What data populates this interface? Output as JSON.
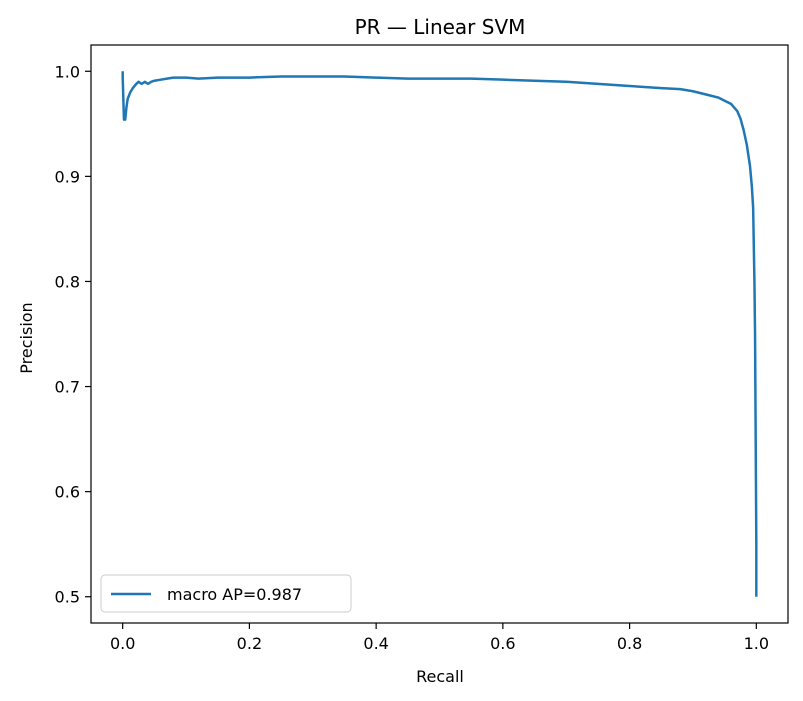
{
  "chart_data": {
    "type": "line",
    "title": "PR — Linear SVM",
    "xlabel": "Recall",
    "ylabel": "Precision",
    "xlim": [
      -0.05,
      1.05
    ],
    "ylim": [
      0.475,
      1.025
    ],
    "xticks": [
      0.0,
      0.2,
      0.4,
      0.6,
      0.8,
      1.0
    ],
    "xtick_labels": [
      "0.0",
      "0.2",
      "0.4",
      "0.6",
      "0.8",
      "1.0"
    ],
    "yticks": [
      0.5,
      0.6,
      0.7,
      0.8,
      0.9,
      1.0
    ],
    "ytick_labels": [
      "0.5",
      "0.6",
      "0.7",
      "0.8",
      "0.9",
      "1.0"
    ],
    "grid": false,
    "legend_position": "lower-left",
    "series": [
      {
        "name": "macro AP=0.987",
        "color": "#1f77b4",
        "x": [
          0.0,
          0.0,
          0.002,
          0.004,
          0.006,
          0.008,
          0.012,
          0.016,
          0.02,
          0.025,
          0.03,
          0.035,
          0.04,
          0.045,
          0.05,
          0.06,
          0.07,
          0.08,
          0.1,
          0.12,
          0.15,
          0.2,
          0.25,
          0.3,
          0.35,
          0.4,
          0.45,
          0.5,
          0.55,
          0.6,
          0.65,
          0.7,
          0.75,
          0.8,
          0.85,
          0.88,
          0.9,
          0.92,
          0.94,
          0.95,
          0.96,
          0.97,
          0.975,
          0.98,
          0.985,
          0.99,
          0.993,
          0.995,
          0.997,
          0.998,
          0.999,
          1.0,
          1.0
        ],
        "y": [
          1.0,
          0.995,
          0.954,
          0.954,
          0.966,
          0.974,
          0.98,
          0.984,
          0.987,
          0.99,
          0.988,
          0.99,
          0.988,
          0.99,
          0.991,
          0.992,
          0.993,
          0.994,
          0.994,
          0.993,
          0.994,
          0.994,
          0.995,
          0.995,
          0.995,
          0.994,
          0.993,
          0.993,
          0.993,
          0.992,
          0.991,
          0.99,
          0.988,
          0.986,
          0.984,
          0.983,
          0.981,
          0.978,
          0.975,
          0.972,
          0.969,
          0.962,
          0.955,
          0.944,
          0.93,
          0.91,
          0.89,
          0.87,
          0.8,
          0.75,
          0.65,
          0.55,
          0.5
        ]
      }
    ]
  }
}
